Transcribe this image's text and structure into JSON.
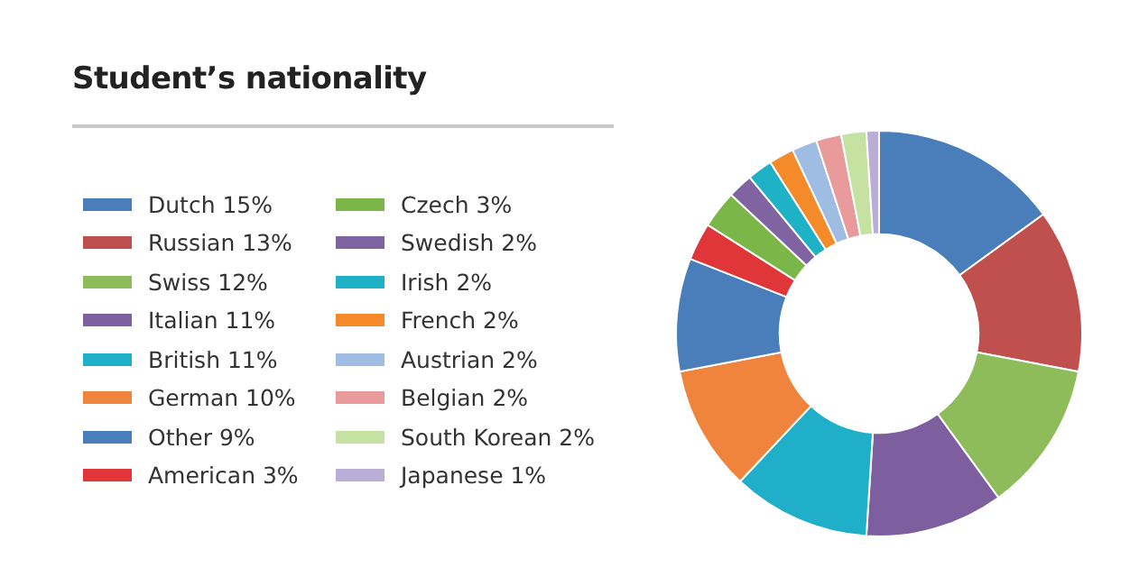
{
  "chart_data": {
    "type": "donut",
    "title": "Student’s nationality",
    "legend": "left",
    "categories": [
      "Dutch 15%",
      "Russian 13%",
      "Swiss 12%",
      "Italian 11%",
      "British 11%",
      "German 10%",
      "Other 9%",
      "American 3%",
      "Czech 3%",
      "Swedish 2%",
      "Irish 2%",
      "French 2%",
      "Austrian 2%",
      "Belgian 2%",
      "South Korean 2%",
      "Japanese 1%"
    ],
    "values": [
      15,
      13,
      12,
      11,
      11,
      10,
      9,
      3,
      3,
      2,
      2,
      2,
      2,
      2,
      2,
      1
    ],
    "colors": [
      "#4a7ebb",
      "#c0504d",
      "#8fbc5a",
      "#7d5fa0",
      "#1fafc8",
      "#f0843c",
      "#4a7ebb",
      "#e0363a",
      "#7ab648",
      "#8064a2",
      "#1fb2c6",
      "#f58a2a",
      "#9fbde3",
      "#e99a9a",
      "#c6e2a2",
      "#bbaed6"
    ]
  }
}
